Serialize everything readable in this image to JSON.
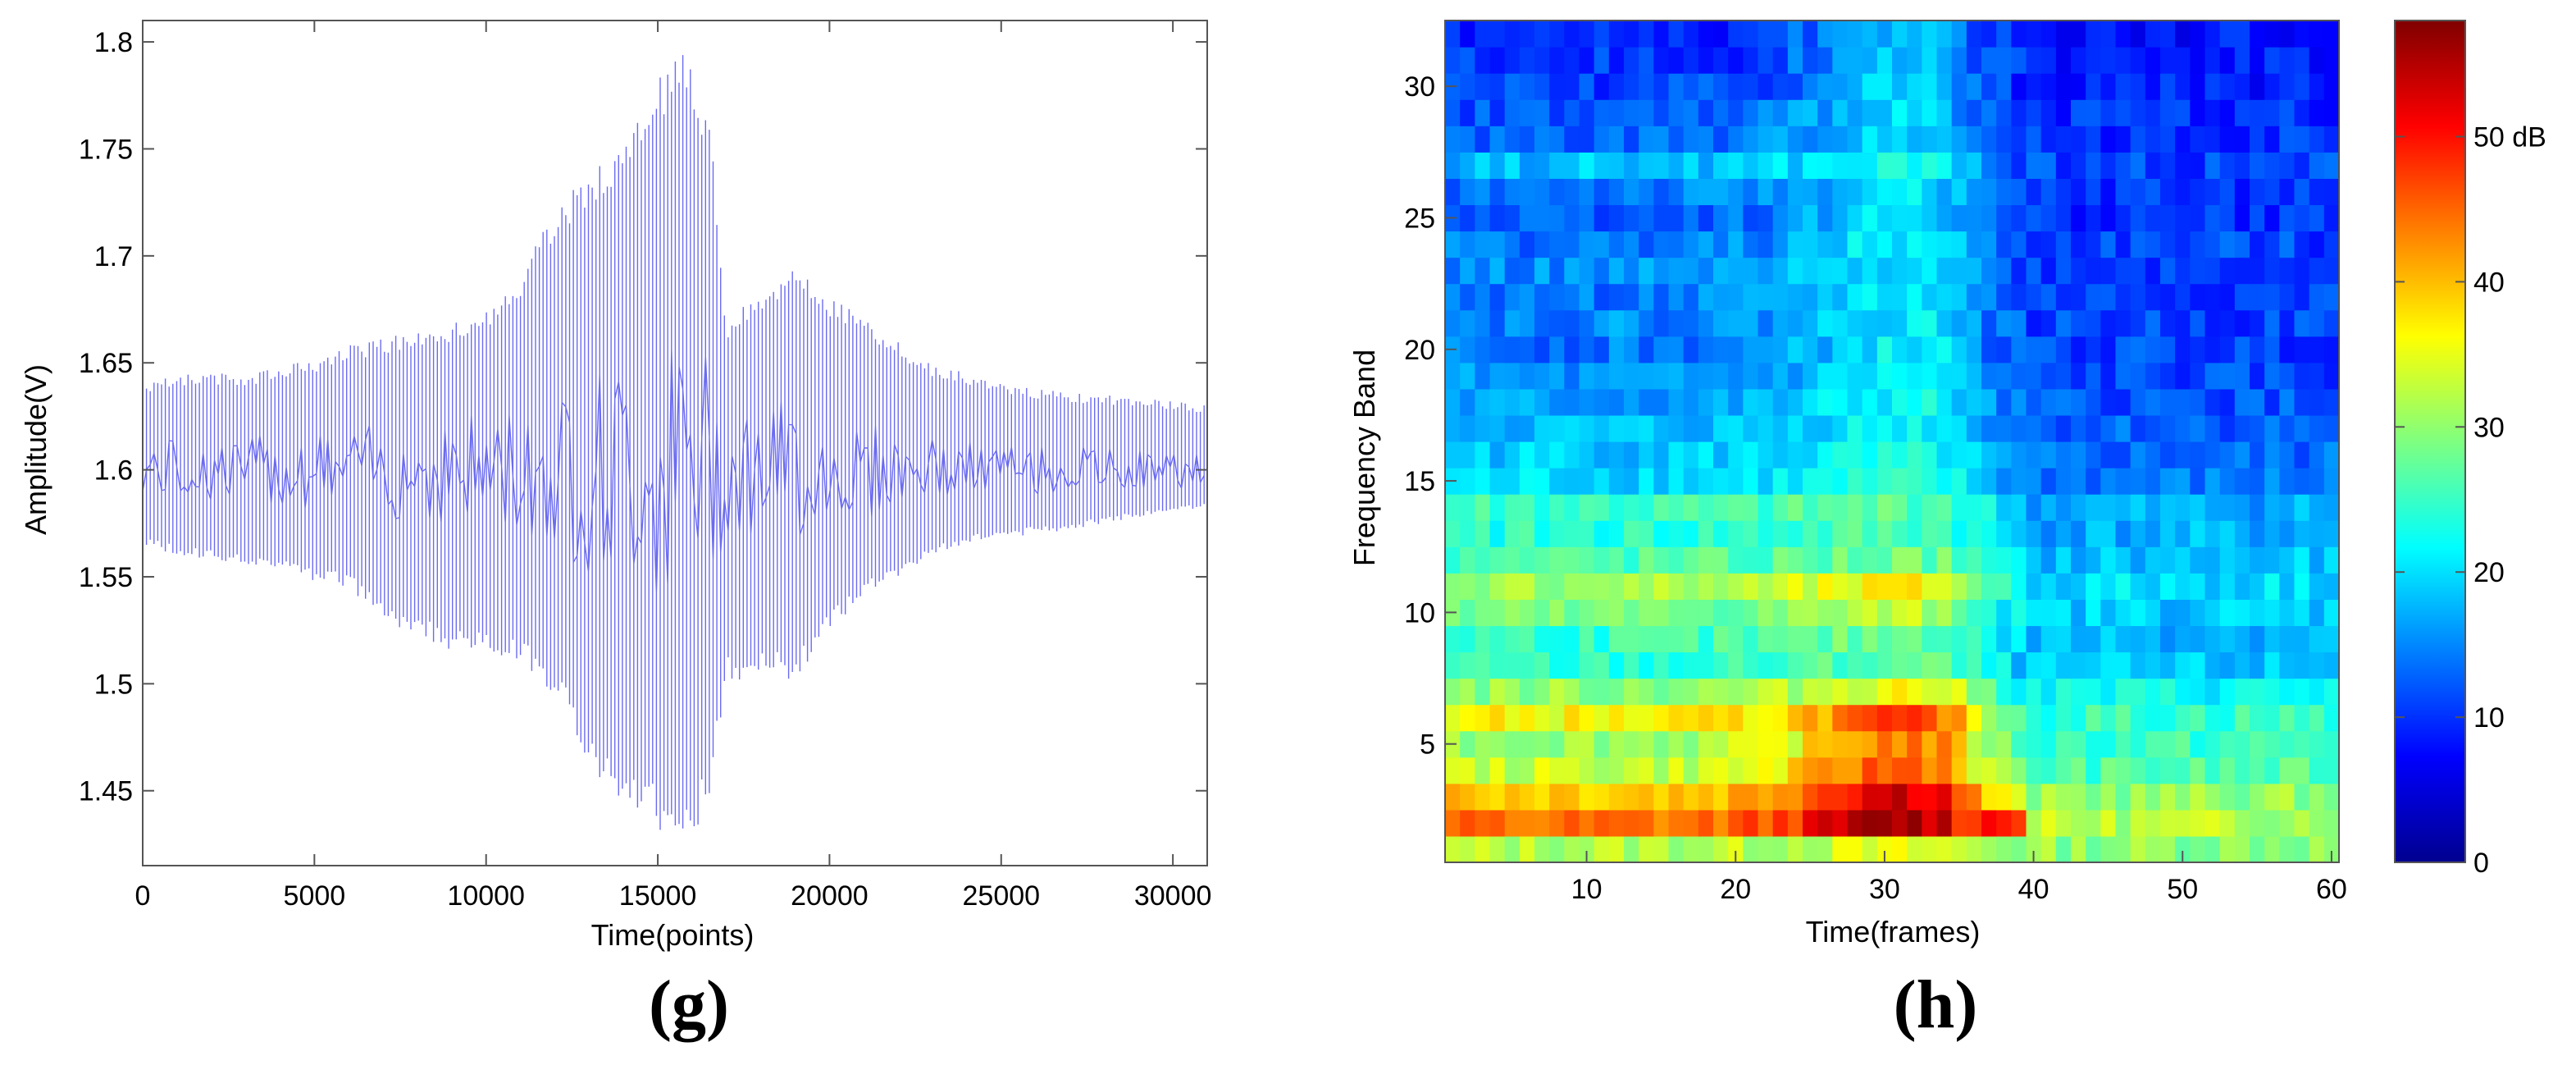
{
  "chart_data": [
    {
      "type": "line",
      "panel_label": "(g)",
      "title": "",
      "xlabel": "Time(points)",
      "ylabel": "Amplitude(V)",
      "xlim": [
        0,
        31000
      ],
      "ylim": [
        1.415,
        1.81
      ],
      "x_ticks": [
        0,
        5000,
        10000,
        15000,
        20000,
        25000,
        30000
      ],
      "x_tick_labels": [
        "0",
        "5000",
        "10000",
        "15000",
        "20000",
        "25000",
        "30000"
      ],
      "y_ticks": [
        1.45,
        1.5,
        1.55,
        1.6,
        1.65,
        1.7,
        1.75,
        1.8
      ],
      "y_tick_labels": [
        "1.45",
        "1.5",
        "1.55",
        "1.6",
        "1.65",
        "1.7",
        "1.75",
        "1.8"
      ],
      "grid": false,
      "line_color": "#6b6bf0",
      "baseline": 1.6,
      "series": [
        {
          "x": [
            0,
            1000,
            2000,
            3000,
            4000,
            5000,
            6000,
            7000,
            8000,
            9000,
            10000,
            11000,
            12000,
            13000,
            14000,
            15000,
            15500,
            16000,
            16500,
            17000,
            18000,
            19000,
            20000,
            21000,
            22000,
            23000,
            24000,
            25000,
            26000,
            27000,
            28000,
            29000,
            30000,
            31000
          ],
          "upper": [
            1.64,
            1.645,
            1.645,
            1.645,
            1.648,
            1.652,
            1.658,
            1.662,
            1.665,
            1.668,
            1.675,
            1.69,
            1.725,
            1.74,
            1.75,
            1.78,
            1.805,
            1.79,
            1.77,
            1.67,
            1.685,
            1.695,
            1.68,
            1.672,
            1.66,
            1.65,
            1.645,
            1.64,
            1.638,
            1.636,
            1.635,
            1.634,
            1.632,
            1.63
          ],
          "lower": [
            1.565,
            1.56,
            1.558,
            1.555,
            1.552,
            1.548,
            1.545,
            1.53,
            1.522,
            1.515,
            1.515,
            1.51,
            1.495,
            1.46,
            1.445,
            1.43,
            1.425,
            1.43,
            1.44,
            1.5,
            1.505,
            1.5,
            1.525,
            1.54,
            1.55,
            1.56,
            1.565,
            1.568,
            1.57,
            1.572,
            1.575,
            1.578,
            1.58,
            1.582
          ]
        }
      ]
    },
    {
      "type": "heatmap",
      "panel_label": "(h)",
      "title": "",
      "xlabel": "Time(frames)",
      "ylabel": "Frequency Band",
      "xlim": [
        0.5,
        60.5
      ],
      "ylim": [
        0.5,
        32.5
      ],
      "x_ticks": [
        10,
        20,
        30,
        40,
        50,
        60
      ],
      "x_tick_labels": [
        "10",
        "20",
        "30",
        "40",
        "50",
        "60"
      ],
      "y_ticks": [
        5,
        10,
        15,
        20,
        25,
        30
      ],
      "y_tick_labels": [
        "5",
        "10",
        "15",
        "20",
        "25",
        "30"
      ],
      "colormap": "jet",
      "colorbar": {
        "range": [
          0,
          58
        ],
        "ticks": [
          0,
          10,
          20,
          30,
          40,
          50
        ],
        "tick_labels": [
          "0",
          "10",
          "20",
          "30",
          "40",
          "50 dB"
        ]
      },
      "n_frames": 60,
      "n_bands": 32,
      "band_profiles": {
        "1": {
          "early": 32,
          "peak": 34,
          "late": 30
        },
        "2": {
          "early": 44,
          "peak": 56,
          "late": 32
        },
        "3": {
          "early": 40,
          "peak": 54,
          "late": 30
        },
        "4": {
          "early": 33,
          "peak": 46,
          "late": 26
        },
        "5": {
          "early": 31,
          "peak": 44,
          "late": 25
        },
        "6": {
          "early": 36,
          "peak": 46,
          "late": 25
        },
        "7": {
          "early": 30,
          "peak": 36,
          "late": 22
        },
        "8": {
          "early": 24,
          "peak": 27,
          "late": 18
        },
        "9": {
          "early": 25,
          "peak": 28,
          "late": 18
        },
        "10": {
          "early": 28,
          "peak": 32,
          "late": 19
        },
        "11": {
          "early": 31,
          "peak": 36,
          "late": 20
        },
        "12": {
          "early": 26,
          "peak": 28,
          "late": 18
        },
        "13": {
          "early": 24,
          "peak": 26,
          "late": 17
        },
        "14": {
          "early": 25,
          "peak": 27,
          "late": 17
        },
        "15": {
          "early": 20,
          "peak": 23,
          "late": 14
        },
        "16": {
          "early": 19,
          "peak": 22,
          "late": 13
        },
        "17": {
          "early": 18,
          "peak": 22,
          "late": 13
        },
        "18": {
          "early": 16,
          "peak": 22,
          "late": 12
        },
        "19": {
          "early": 15,
          "peak": 21,
          "late": 11
        },
        "20": {
          "early": 14,
          "peak": 21,
          "late": 11
        },
        "21": {
          "early": 15,
          "peak": 21,
          "late": 11
        },
        "22": {
          "early": 14,
          "peak": 21,
          "late": 11
        },
        "23": {
          "early": 15,
          "peak": 21,
          "late": 11
        },
        "24": {
          "early": 14,
          "peak": 21,
          "late": 11
        },
        "25": {
          "early": 13,
          "peak": 20,
          "late": 10
        },
        "26": {
          "early": 14,
          "peak": 20,
          "late": 10
        },
        "27": {
          "early": 18,
          "peak": 22,
          "late": 11
        },
        "28": {
          "early": 13,
          "peak": 20,
          "late": 10
        },
        "29": {
          "early": 12,
          "peak": 20,
          "late": 10
        },
        "30": {
          "early": 11,
          "peak": 19,
          "late": 9
        },
        "31": {
          "early": 10,
          "peak": 19,
          "late": 9
        },
        "32": {
          "early": 9,
          "peak": 18,
          "late": 8
        }
      },
      "peak_frame": 31,
      "transition_frame": 34
    }
  ]
}
